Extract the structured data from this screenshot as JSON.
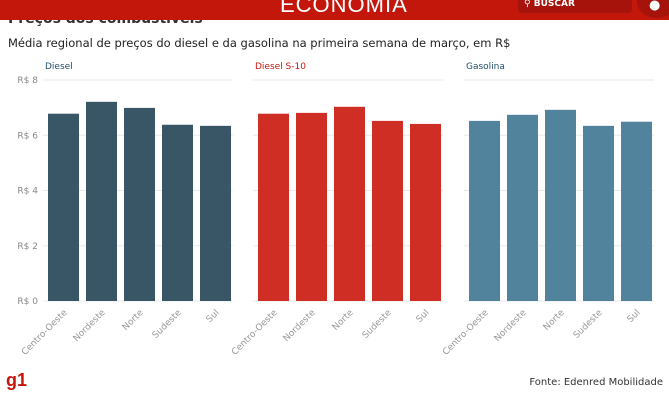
{
  "header": {
    "section": "ECONOMIA",
    "search_label": "BUSCAR",
    "search_icon": "search-icon",
    "user_icon": "user-icon"
  },
  "title": "Preços dos combustíveis",
  "subtitle": "Média regional de preços do diesel e da gasolina na primeira semana de março, em R$",
  "source": "Fonte: Edenred Mobilidade",
  "logo": "g1",
  "chart_data": [
    {
      "type": "bar",
      "title": "Diesel",
      "color": "#385666",
      "categories": [
        "Centro-Oeste",
        "Nordeste",
        "Norte",
        "Sudeste",
        "Sul"
      ],
      "values": [
        6.78,
        7.21,
        6.99,
        6.38,
        6.34
      ],
      "ylim": [
        0,
        8
      ],
      "yticks": [
        "R$ 0",
        "R$ 2",
        "R$ 4",
        "R$ 6",
        "R$ 8"
      ]
    },
    {
      "type": "bar",
      "title": "Diesel S-10",
      "color": "#cf2e25",
      "categories": [
        "Centro-Oeste",
        "Nordeste",
        "Norte",
        "Sudeste",
        "Sul"
      ],
      "values": [
        6.78,
        6.81,
        7.03,
        6.52,
        6.41
      ],
      "ylim": [
        0,
        8
      ]
    },
    {
      "type": "bar",
      "title": "Gasolina",
      "color": "#51839c",
      "categories": [
        "Centro-Oeste",
        "Nordeste",
        "Norte",
        "Sudeste",
        "Sul"
      ],
      "values": [
        6.52,
        6.74,
        6.92,
        6.34,
        6.49
      ],
      "ylim": [
        0,
        8
      ]
    }
  ]
}
